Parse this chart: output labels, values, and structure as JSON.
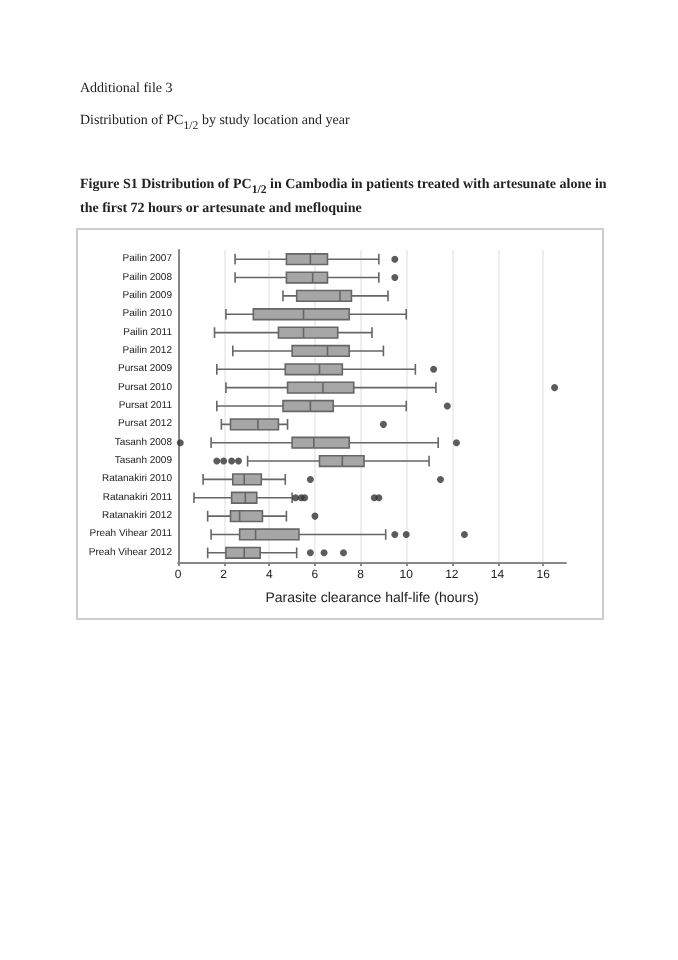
{
  "chart_data": {
    "type": "box",
    "title": "Figure  S1  Distribution of PC$_{1/2}$ in Cambodia in patients treated with artesunate alone in the first 72 hours or artesunate and mefloquine",
    "subtitle": "Distribution of PC$_{1/2}$ by study location and year",
    "annotations": [
      "Additional file 3"
    ],
    "xlabel": "Parasite clearance half-life (hours)",
    "orientation": "horizontal",
    "color": "#a6a6a6",
    "grid": "x",
    "xlim": [
      0,
      17
    ],
    "xticks": [
      0,
      2,
      4,
      6,
      8,
      10,
      12,
      14,
      16
    ],
    "categories": [
      "Pailin 2007",
      "Pailin 2008",
      "Pailin 2009",
      "Pailin 2010",
      "Pailin 2011",
      "Pailin 2012",
      "Pursat 2009",
      "Pursat 2010",
      "Pursat 2011",
      "Pursat 2012",
      "Tasanh 2008",
      "Tasanh 2009",
      "Ratanakiri 2010",
      "Ratanakiri 2011",
      "Ratanakiri 2012",
      "Preah Vihear 2011",
      "Preah Vihear 2012"
    ],
    "boxes": [
      {
        "low": 2.5,
        "q1": 4.75,
        "median": 5.8,
        "q3": 6.55,
        "high": 8.8,
        "outliers": [
          9.5
        ]
      },
      {
        "low": 2.5,
        "q1": 4.75,
        "median": 5.9,
        "q3": 6.55,
        "high": 8.8,
        "outliers": [
          9.5
        ]
      },
      {
        "low": 4.6,
        "q1": 5.2,
        "median": 7.1,
        "q3": 7.6,
        "high": 9.2
      },
      {
        "low": 2.1,
        "q1": 3.3,
        "median": 5.5,
        "q3": 7.5,
        "high": 10.0
      },
      {
        "low": 1.6,
        "q1": 4.4,
        "median": 5.5,
        "q3": 7.0,
        "high": 8.5
      },
      {
        "low": 2.4,
        "q1": 5.0,
        "median": 6.55,
        "q3": 7.5,
        "high": 9.0
      },
      {
        "low": 1.7,
        "q1": 4.7,
        "median": 6.2,
        "q3": 7.2,
        "high": 10.4,
        "outliers": [
          11.2
        ]
      },
      {
        "low": 2.1,
        "q1": 4.8,
        "median": 6.35,
        "q3": 7.7,
        "high": 11.3,
        "outliers": [
          16.5
        ]
      },
      {
        "low": 1.7,
        "q1": 4.6,
        "median": 5.8,
        "q3": 6.8,
        "high": 10.0,
        "outliers": [
          11.8
        ]
      },
      {
        "low": 1.9,
        "q1": 2.3,
        "median": 3.5,
        "q3": 4.4,
        "high": 4.8,
        "outliers": [
          9.0
        ]
      },
      {
        "low": 1.45,
        "q1": 5.0,
        "median": 5.95,
        "q3": 7.5,
        "high": 11.4,
        "outliers": [
          0.1,
          12.2
        ]
      },
      {
        "low": 3.05,
        "q1": 6.2,
        "median": 7.2,
        "q3": 8.15,
        "high": 11.0,
        "outliers": [
          1.7,
          2.0,
          2.35,
          2.65
        ]
      },
      {
        "low": 1.1,
        "q1": 2.4,
        "median": 2.9,
        "q3": 3.65,
        "high": 4.7,
        "outliers": [
          5.8,
          11.5
        ]
      },
      {
        "low": 0.7,
        "q1": 2.35,
        "median": 2.95,
        "q3": 3.45,
        "high": 5.0,
        "outliers": [
          5.15,
          5.4,
          5.55,
          8.6,
          8.8
        ]
      },
      {
        "low": 1.3,
        "q1": 2.3,
        "median": 2.7,
        "q3": 3.7,
        "high": 4.75,
        "outliers": [
          6.0
        ]
      },
      {
        "low": 1.45,
        "q1": 2.7,
        "median": 3.4,
        "q3": 5.3,
        "high": 9.1,
        "outliers": [
          9.5,
          10.0,
          12.55
        ]
      },
      {
        "low": 1.3,
        "q1": 2.1,
        "median": 2.9,
        "q3": 3.6,
        "high": 5.2,
        "outliers": [
          5.8,
          6.4,
          7.25
        ]
      }
    ]
  }
}
